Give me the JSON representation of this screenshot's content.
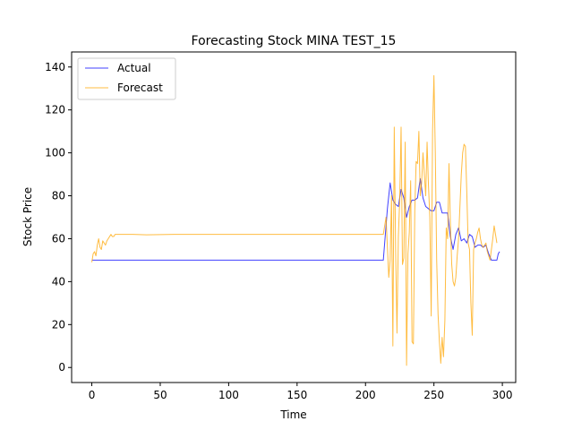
{
  "chart_data": {
    "type": "line",
    "title": "Forecasting Stock MINA TEST_15",
    "xlabel": "Time",
    "ylabel": "Stock Price",
    "xlim": [
      -14.75,
      309.75
    ],
    "ylim": [
      -7,
      147
    ],
    "xticks": [
      0,
      50,
      100,
      150,
      200,
      250,
      300
    ],
    "yticks": [
      0,
      20,
      40,
      60,
      80,
      100,
      120,
      140
    ],
    "legend_position": "upper-left",
    "grid": false,
    "series": [
      {
        "name": "Actual",
        "color": "#0000ff",
        "points": [
          [
            0,
            50
          ],
          [
            212,
            50
          ],
          [
            213,
            50
          ],
          [
            214,
            58
          ],
          [
            216,
            74
          ],
          [
            218,
            86
          ],
          [
            220,
            78
          ],
          [
            222,
            76
          ],
          [
            224,
            75
          ],
          [
            226,
            83
          ],
          [
            228,
            79
          ],
          [
            230,
            70
          ],
          [
            232,
            75
          ],
          [
            234,
            78
          ],
          [
            236,
            78
          ],
          [
            238,
            79
          ],
          [
            240,
            88
          ],
          [
            242,
            79
          ],
          [
            244,
            75
          ],
          [
            246,
            74
          ],
          [
            248,
            73
          ],
          [
            250,
            73
          ],
          [
            252,
            77
          ],
          [
            254,
            77
          ],
          [
            256,
            72
          ],
          [
            258,
            72
          ],
          [
            260,
            72
          ],
          [
            262,
            61
          ],
          [
            264,
            55
          ],
          [
            266,
            62
          ],
          [
            268,
            65
          ],
          [
            270,
            59
          ],
          [
            272,
            60
          ],
          [
            274,
            58
          ],
          [
            276,
            62
          ],
          [
            278,
            61
          ],
          [
            280,
            56
          ],
          [
            282,
            57
          ],
          [
            284,
            57
          ],
          [
            286,
            56
          ],
          [
            288,
            57
          ],
          [
            290,
            53
          ],
          [
            292,
            50
          ],
          [
            294,
            50
          ],
          [
            296,
            50
          ],
          [
            297,
            53
          ],
          [
            298,
            54
          ]
        ]
      },
      {
        "name": "Forecast",
        "color": "#ffa500",
        "points": [
          [
            0,
            49
          ],
          [
            1,
            53
          ],
          [
            2,
            54
          ],
          [
            3,
            52
          ],
          [
            4,
            57
          ],
          [
            5,
            60
          ],
          [
            6,
            56
          ],
          [
            7,
            55
          ],
          [
            8,
            59
          ],
          [
            9,
            58
          ],
          [
            10,
            57
          ],
          [
            11,
            59
          ],
          [
            12,
            60
          ],
          [
            13,
            61
          ],
          [
            14,
            62
          ],
          [
            15,
            61
          ],
          [
            16,
            61
          ],
          [
            17,
            62
          ],
          [
            18,
            62
          ],
          [
            20,
            62
          ],
          [
            30,
            62
          ],
          [
            40,
            61.8
          ],
          [
            60,
            62
          ],
          [
            80,
            62
          ],
          [
            100,
            62
          ],
          [
            120,
            62
          ],
          [
            140,
            62
          ],
          [
            160,
            62
          ],
          [
            180,
            62
          ],
          [
            200,
            62
          ],
          [
            213,
            62
          ],
          [
            215,
            70
          ],
          [
            217,
            42
          ],
          [
            218,
            50
          ],
          [
            219,
            80
          ],
          [
            220,
            10
          ],
          [
            221,
            112
          ],
          [
            222,
            55
          ],
          [
            223,
            16
          ],
          [
            224,
            61
          ],
          [
            225,
            78
          ],
          [
            226,
            112
          ],
          [
            227,
            48
          ],
          [
            228,
            51
          ],
          [
            229,
            105
          ],
          [
            230,
            1
          ],
          [
            231,
            53
          ],
          [
            232,
            63
          ],
          [
            233,
            87
          ],
          [
            234,
            12
          ],
          [
            235,
            11
          ],
          [
            236,
            73
          ],
          [
            237,
            96
          ],
          [
            238,
            95
          ],
          [
            239,
            110
          ],
          [
            240,
            80
          ],
          [
            241,
            86
          ],
          [
            242,
            100
          ],
          [
            243,
            90
          ],
          [
            244,
            80
          ],
          [
            245,
            105
          ],
          [
            246,
            85
          ],
          [
            247,
            70
          ],
          [
            248,
            24
          ],
          [
            249,
            110
          ],
          [
            250,
            136
          ],
          [
            251,
            100
          ],
          [
            252,
            50
          ],
          [
            253,
            25
          ],
          [
            254,
            12
          ],
          [
            255,
            2
          ],
          [
            256,
            14
          ],
          [
            257,
            5
          ],
          [
            258,
            22
          ],
          [
            259,
            65
          ],
          [
            260,
            60
          ],
          [
            261,
            95
          ],
          [
            262,
            68
          ],
          [
            263,
            48
          ],
          [
            264,
            40
          ],
          [
            265,
            38
          ],
          [
            266,
            42
          ],
          [
            267,
            52
          ],
          [
            268,
            60
          ],
          [
            269,
            75
          ],
          [
            270,
            90
          ],
          [
            271,
            100
          ],
          [
            272,
            104
          ],
          [
            273,
            103
          ],
          [
            274,
            82
          ],
          [
            275,
            58
          ],
          [
            276,
            55
          ],
          [
            277,
            30
          ],
          [
            278,
            15
          ],
          [
            279,
            55
          ],
          [
            280,
            58
          ],
          [
            281,
            60
          ],
          [
            282,
            63
          ],
          [
            283,
            65
          ],
          [
            284,
            60
          ],
          [
            285,
            57
          ],
          [
            286,
            56
          ],
          [
            287,
            57
          ],
          [
            288,
            58
          ],
          [
            289,
            54
          ],
          [
            290,
            52
          ],
          [
            291,
            50
          ],
          [
            292,
            55
          ],
          [
            293,
            60
          ],
          [
            294,
            66
          ],
          [
            295,
            62
          ],
          [
            296,
            58
          ]
        ]
      }
    ]
  }
}
